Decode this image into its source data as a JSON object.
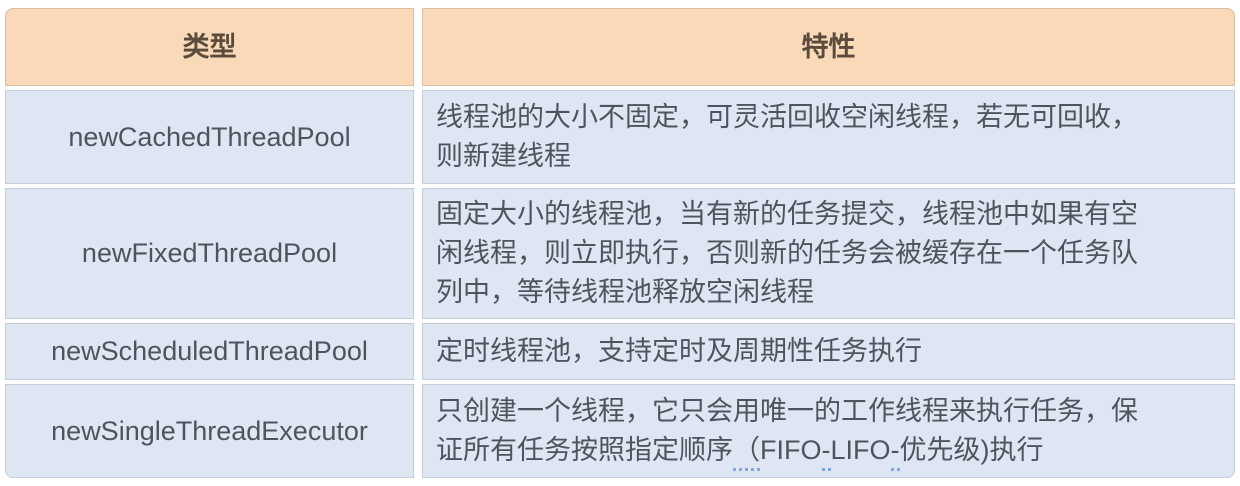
{
  "colors": {
    "page_bg": "#ffffff",
    "header_bg": "#fad9b8",
    "header_border": "#d6bfa4",
    "header_text": "#5a4b3d",
    "body_bg": "#dfe6f3",
    "body_border": "#c5ccd9",
    "body_text": "#4e545e",
    "squiggle_dots": "#7ba4f2"
  },
  "table": {
    "headers": [
      {
        "label": "类型"
      },
      {
        "label": "特性"
      }
    ],
    "rows": [
      {
        "type": "newCachedThreadPool",
        "feature": "线程池的大小不固定，可灵活回收空闲线程，若无可回收，\n则新建线程"
      },
      {
        "type": "newFixedThreadPool",
        "feature": "固定大小的线程池，当有新的任务提交，线程池中如果有空\n闲线程，则立即执行，否则新的任务会被缓存在一个任务队\n列中，等待线程池释放空闲线程"
      },
      {
        "type": "newScheduledThreadPool",
        "feature": "定时线程池，支持定时及周期性任务执行"
      },
      {
        "type": "newSingleThreadExecutor",
        "segments": [
          {
            "text": "只创建一个线程，它只会用唯一的工作线程来执行任务，保\n证所有任务按照指定顺序",
            "underlined": false
          },
          {
            "text": "（",
            "underlined": true
          },
          {
            "text": "FIFO",
            "underlined": false
          },
          {
            "text": "-",
            "underlined": true
          },
          {
            "text": "LIFO",
            "underlined": false
          },
          {
            "text": "-",
            "underlined": true
          },
          {
            "text": "优先级)执行",
            "underlined": false
          }
        ]
      }
    ]
  }
}
